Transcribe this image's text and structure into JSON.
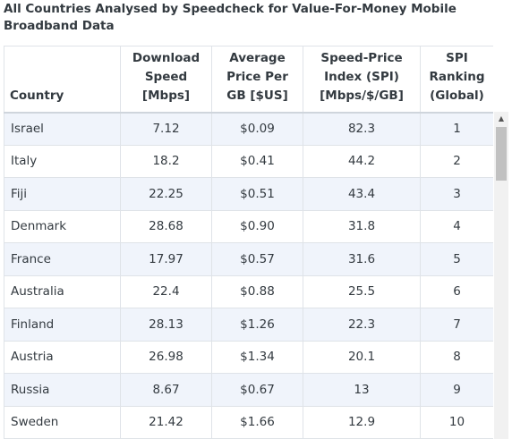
{
  "title": "All Countries Analysed by Speedcheck for Value-For-Money Mobile Broadband Data",
  "table": {
    "headers": [
      "Country",
      "Download Speed [Mbps]",
      "Average Price Per GB [$US]",
      "Speed-Price Index (SPI) [Mbps/$/GB]",
      "SPI Ranking (Global)"
    ],
    "rows": [
      [
        "Israel",
        "7.12",
        "$0.09",
        "82.3",
        "1"
      ],
      [
        "Italy",
        "18.2",
        "$0.41",
        "44.2",
        "2"
      ],
      [
        "Fiji",
        "22.25",
        "$0.51",
        "43.4",
        "3"
      ],
      [
        "Denmark",
        "28.68",
        "$0.90",
        "31.8",
        "4"
      ],
      [
        "France",
        "17.97",
        "$0.57",
        "31.6",
        "5"
      ],
      [
        "Australia",
        "22.4",
        "$0.88",
        "25.5",
        "6"
      ],
      [
        "Finland",
        "28.13",
        "$1.26",
        "22.3",
        "7"
      ],
      [
        "Austria",
        "26.98",
        "$1.34",
        "20.1",
        "8"
      ],
      [
        "Russia",
        "8.67",
        "$0.67",
        "13",
        "9"
      ],
      [
        "Sweden",
        "21.42",
        "$1.66",
        "12.9",
        "10"
      ]
    ]
  },
  "scrollbar": {
    "up_icon": "triangle-up"
  }
}
